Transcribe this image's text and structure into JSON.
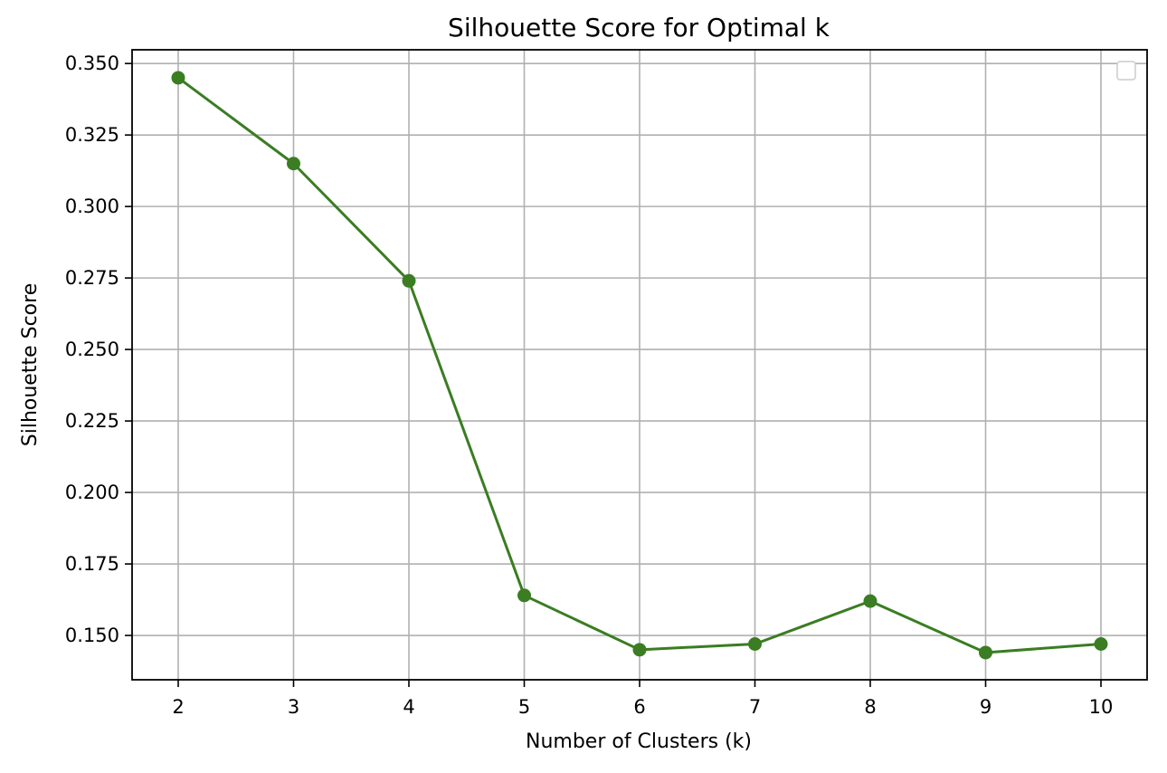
{
  "chart_data": {
    "type": "line",
    "title": "Silhouette Score for Optimal k",
    "xlabel": "Number of Clusters (k)",
    "ylabel": "Silhouette Score",
    "x": [
      2,
      3,
      4,
      5,
      6,
      7,
      8,
      9,
      10
    ],
    "series": [
      {
        "values": [
          0.345,
          0.315,
          0.274,
          0.164,
          0.145,
          0.147,
          0.162,
          0.144,
          0.147
        ],
        "color": "#3a7d22",
        "marker": "circle"
      }
    ],
    "xticks": [
      "2",
      "3",
      "4",
      "5",
      "6",
      "7",
      "8",
      "9",
      "10"
    ],
    "yticks": [
      "0.150",
      "0.175",
      "0.200",
      "0.225",
      "0.250",
      "0.275",
      "0.300",
      "0.325",
      "0.350"
    ],
    "xlim": [
      1.6,
      10.4
    ],
    "ylim": [
      0.1345,
      0.3548
    ],
    "grid": true,
    "legend": {
      "position": "top-right",
      "entries": []
    }
  }
}
